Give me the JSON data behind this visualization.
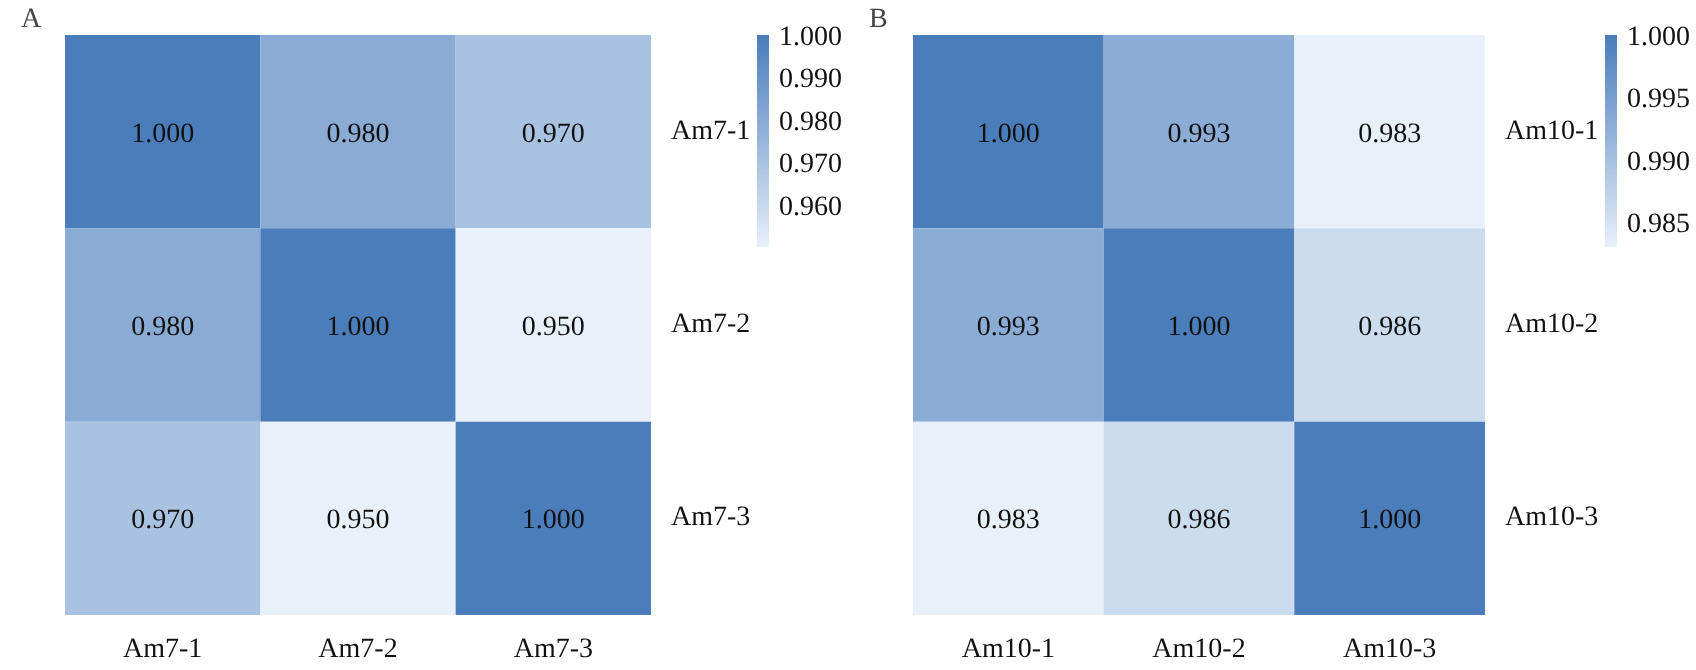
{
  "chart_data": [
    {
      "type": "heatmap",
      "title": "A",
      "categories": [
        "Am7-1",
        "Am7-2",
        "Am7-3"
      ],
      "y_categories": [
        "Am7-1",
        "Am7-2",
        "Am7-3"
      ],
      "cells": [
        [
          1.0,
          0.98,
          0.97
        ],
        [
          0.98,
          1.0,
          0.95
        ],
        [
          0.97,
          0.95,
          1.0
        ]
      ],
      "cell_labels": [
        [
          "1.000",
          "0.980",
          "0.970"
        ],
        [
          "0.980",
          "1.000",
          "0.950"
        ],
        [
          "0.970",
          "0.950",
          "1.000"
        ]
      ],
      "clim": [
        0.95,
        1.0
      ],
      "cticks": [
        {
          "value": 1.0,
          "label": "1.000"
        },
        {
          "value": 0.99,
          "label": "0.990"
        },
        {
          "value": 0.98,
          "label": "0.980"
        },
        {
          "value": 0.97,
          "label": "0.970"
        },
        {
          "value": 0.96,
          "label": "0.960"
        }
      ]
    },
    {
      "type": "heatmap",
      "title": "B",
      "categories": [
        "Am10-1",
        "Am10-2",
        "Am10-3"
      ],
      "y_categories": [
        "Am10-1",
        "Am10-2",
        "Am10-3"
      ],
      "cells": [
        [
          1.0,
          0.993,
          0.983
        ],
        [
          0.993,
          1.0,
          0.986
        ],
        [
          0.983,
          0.986,
          1.0
        ]
      ],
      "cell_labels": [
        [
          "1.000",
          "0.993",
          "0.983"
        ],
        [
          "0.993",
          "1.000",
          "0.986"
        ],
        [
          "0.983",
          "0.986",
          "1.000"
        ]
      ],
      "clim": [
        0.983,
        1.0
      ],
      "cticks": [
        {
          "value": 1.0,
          "label": "1.000"
        },
        {
          "value": 0.995,
          "label": "0.995"
        },
        {
          "value": 0.99,
          "label": "0.990"
        },
        {
          "value": 0.985,
          "label": "0.985"
        }
      ]
    }
  ]
}
